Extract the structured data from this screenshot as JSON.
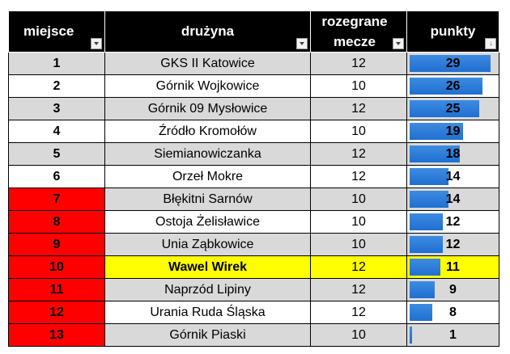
{
  "headers": {
    "place": "miejsce",
    "team": "drużyna",
    "games_line1": "rozegrane",
    "games_line2": "mecze",
    "points": "punkty"
  },
  "max_points": 29,
  "colors": {
    "header_bg": "#000000",
    "row_alt": "#d9d9d9",
    "relegation": "#ff0000",
    "highlight": "#ffff00",
    "bar": "#2e7fd9"
  },
  "rows": [
    {
      "place": "1",
      "team": "GKS II Katowice",
      "games": "12",
      "points": 29
    },
    {
      "place": "2",
      "team": "Górnik Wojkowice",
      "games": "10",
      "points": 26
    },
    {
      "place": "3",
      "team": "Górnik 09 Mysłowice",
      "games": "12",
      "points": 25
    },
    {
      "place": "4",
      "team": "Źródło Kromołów",
      "games": "10",
      "points": 19
    },
    {
      "place": "5",
      "team": "Siemianowiczanka",
      "games": "12",
      "points": 18
    },
    {
      "place": "6",
      "team": "Orzeł Mokre",
      "games": "12",
      "points": 14
    },
    {
      "place": "7",
      "team": "Błękitni Sarnów",
      "games": "10",
      "points": 14,
      "relegation": true
    },
    {
      "place": "8",
      "team": "Ostoja Żelisławice",
      "games": "10",
      "points": 12,
      "relegation": true
    },
    {
      "place": "9",
      "team": "Unia Ząbkowice",
      "games": "10",
      "points": 12,
      "relegation": true
    },
    {
      "place": "10",
      "team": "Wawel Wirek",
      "games": "12",
      "points": 11,
      "relegation": true,
      "highlight": true
    },
    {
      "place": "11",
      "team": "Naprzód Lipiny",
      "games": "12",
      "points": 9,
      "relegation": true
    },
    {
      "place": "12",
      "team": "Urania Ruda Śląska",
      "games": "12",
      "points": 8,
      "relegation": true
    },
    {
      "place": "13",
      "team": "Górnik Piaski",
      "games": "10",
      "points": 1,
      "relegation": true
    }
  ]
}
